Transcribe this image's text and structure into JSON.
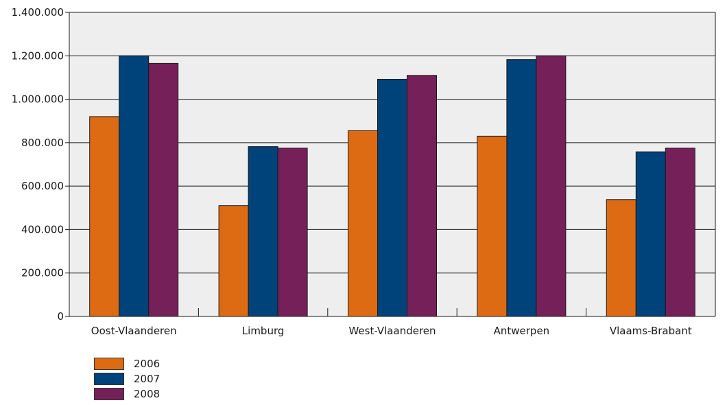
{
  "chart_data": {
    "type": "bar",
    "categories": [
      "Oost-Vlaanderen",
      "Limburg",
      "West-Vlaanderen",
      "Antwerpen",
      "Vlaams-Brabant"
    ],
    "series": [
      {
        "name": "2006",
        "color": "#dd6b14",
        "values": [
          920000,
          510000,
          855000,
          830000,
          538000
        ]
      },
      {
        "name": "2007",
        "color": "#00427a",
        "values": [
          1200000,
          782000,
          1092000,
          1183000,
          758000
        ]
      },
      {
        "name": "2008",
        "color": "#76205a",
        "values": [
          1165000,
          775000,
          1110000,
          1200000,
          775000
        ]
      }
    ],
    "ylim": [
      0,
      1400000
    ],
    "yticks": [
      0,
      200000,
      400000,
      600000,
      800000,
      1000000,
      1200000,
      1400000
    ],
    "ytick_labels": [
      "0",
      "200.000",
      "400.000",
      "600.000",
      "800.000",
      "1.000.000",
      "1.200.000",
      "1.400.000"
    ],
    "grid": true,
    "legend_position": "bottom-left",
    "plot_background": "#eeeeee",
    "grid_color": "#1a1a1a"
  }
}
